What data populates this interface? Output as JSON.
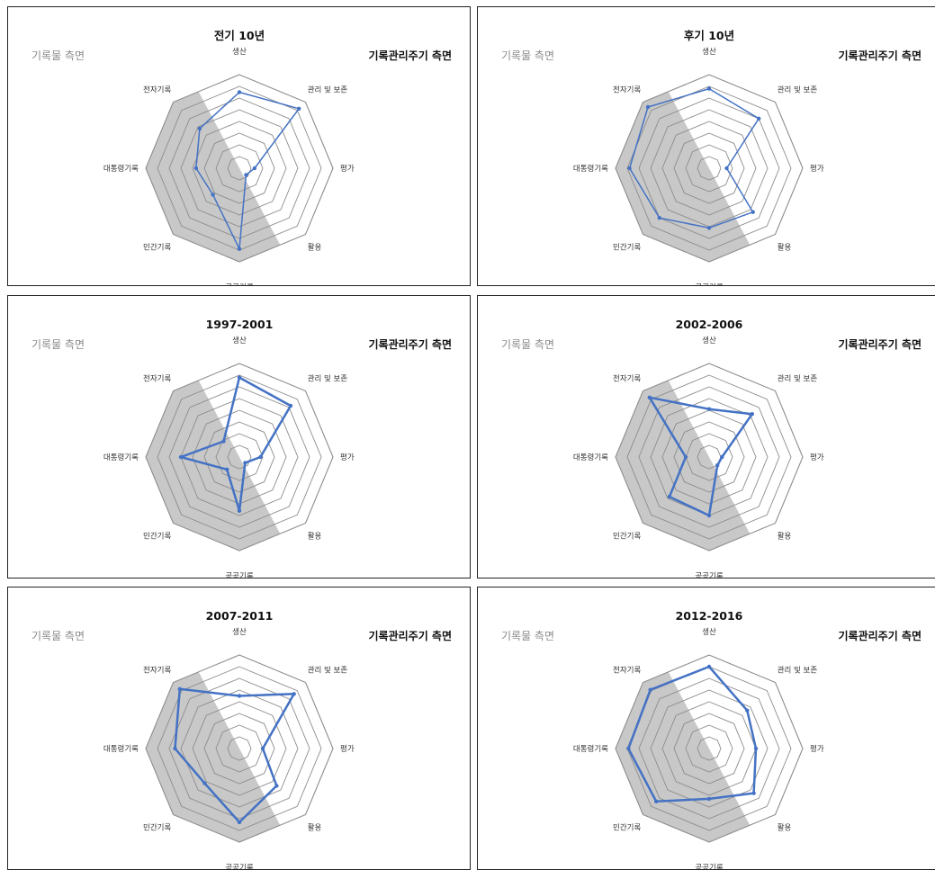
{
  "colors": {
    "series": "#4472C4",
    "shade": "#c8c8c8",
    "grid": "#8c8c8c",
    "frame": "#222222"
  },
  "chart_data": [
    {
      "type": "radar",
      "title": "전기 10년",
      "left_label": "기록물 측면",
      "right_label": "기록관리주기 측면",
      "categories": [
        "생산",
        "관리 및 보존",
        "평가",
        "활용",
        "공공기록",
        "민간기록",
        "대통령기록",
        "전자기록"
      ],
      "rlim": [
        0,
        8
      ],
      "shaded_categories": [
        "공공기록",
        "민간기록",
        "대통령기록",
        "전자기록"
      ],
      "values": [
        6.5,
        7.2,
        1.3,
        0.8,
        6.9,
        3.2,
        3.7,
        4.8
      ],
      "line_width": 1.5
    },
    {
      "type": "radar",
      "title": "후기 10년",
      "left_label": "기록물 측면",
      "right_label": "기록관리주기 측면",
      "categories": [
        "생산",
        "관리 및 보존",
        "평가",
        "활용",
        "공공기록",
        "민간기록",
        "대통령기록",
        "전자기록"
      ],
      "rlim": [
        0,
        8
      ],
      "shaded_categories": [
        "공공기록",
        "민간기록",
        "대통령기록",
        "전자기록"
      ],
      "values": [
        6.8,
        6.0,
        1.5,
        5.3,
        5.1,
        6.0,
        6.8,
        7.4
      ],
      "line_width": 1.5
    },
    {
      "type": "radar",
      "title": "1997-2001",
      "left_label": "기록물 측면",
      "right_label": "기록관리주기 측면",
      "categories": [
        "생산",
        "관리 및 보존",
        "평가",
        "활용",
        "공공기록",
        "민간기록",
        "대통령기록",
        "전자기록"
      ],
      "rlim": [
        0,
        8
      ],
      "shaded_categories": [
        "공공기록",
        "민간기록",
        "대통령기록",
        "전자기록"
      ],
      "values": [
        6.8,
        6.2,
        1.8,
        0.7,
        4.6,
        1.5,
        5.0,
        1.9
      ],
      "line_width": 2.5
    },
    {
      "type": "radar",
      "title": "2002-2006",
      "left_label": "기록물 측면",
      "right_label": "기록관리주기 측면",
      "categories": [
        "생산",
        "관리 및 보존",
        "평가",
        "활용",
        "공공기록",
        "민간기록",
        "대통령기록",
        "전자기록"
      ],
      "rlim": [
        0,
        8
      ],
      "shaded_categories": [
        "공공기록",
        "민간기록",
        "대통령기록",
        "전자기록"
      ],
      "values": [
        4.1,
        5.2,
        1.1,
        1.0,
        5.0,
        4.8,
        2.0,
        7.2
      ],
      "line_width": 2.5
    },
    {
      "type": "radar",
      "title": "2007-2011",
      "left_label": "기록물 측면",
      "right_label": "기록관리주기 측면",
      "categories": [
        "생산",
        "관리 및 보존",
        "평가",
        "활용",
        "공공기록",
        "민간기록",
        "대통령기록",
        "전자기록"
      ],
      "rlim": [
        0,
        8
      ],
      "shaded_categories": [
        "공공기록",
        "민간기록",
        "대통령기록",
        "전자기록"
      ],
      "values": [
        4.5,
        6.6,
        2.0,
        4.5,
        6.3,
        4.2,
        5.5,
        7.2
      ],
      "line_width": 2.5
    },
    {
      "type": "radar",
      "title": "2012-2016",
      "left_label": "기록물 측면",
      "right_label": "기록관리주기 측면",
      "categories": [
        "생산",
        "관리 및 보존",
        "평가",
        "활용",
        "공공기록",
        "민간기록",
        "대통령기록",
        "전자기록"
      ],
      "rlim": [
        0,
        8
      ],
      "shaded_categories": [
        "공공기록",
        "민간기록",
        "대통령기록",
        "전자기록"
      ],
      "values": [
        7.0,
        4.6,
        4.0,
        5.4,
        4.3,
        6.4,
        6.9,
        7.1
      ],
      "line_width": 2.5
    }
  ]
}
